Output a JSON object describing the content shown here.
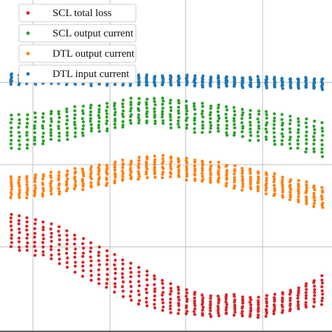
{
  "chart_data": {
    "type": "scatter",
    "x_positions": [
      1,
      2,
      3,
      4,
      5,
      6,
      7,
      8,
      9,
      10,
      11,
      12,
      13,
      14,
      15,
      16,
      17,
      18,
      19,
      20,
      21,
      22,
      23,
      24,
      25,
      26,
      27,
      28,
      29,
      30,
      31,
      32,
      33,
      34,
      35,
      36,
      37,
      38,
      39,
      40
    ],
    "ylim": [
      0,
      4
    ],
    "grid": true,
    "legend_placement": "top-left",
    "series": [
      {
        "name": "SCL total loss",
        "color": "#d62728",
        "low": [
          1.0,
          0.95,
          0.95,
          0.9,
          0.9,
          0.85,
          0.8,
          0.75,
          0.7,
          0.65,
          0.6,
          0.55,
          0.5,
          0.45,
          0.4,
          0.35,
          0.3,
          0.28,
          0.25,
          0.22,
          0.2,
          0.2,
          0.18,
          0.18,
          0.16,
          0.16,
          0.16,
          0.18,
          0.18,
          0.16,
          0.15,
          0.15,
          0.16,
          0.18,
          0.2,
          0.22,
          0.24,
          0.26,
          0.28,
          0.3
        ],
        "high": [
          1.4,
          1.38,
          1.35,
          1.33,
          1.3,
          1.28,
          1.25,
          1.2,
          1.15,
          1.1,
          1.05,
          1.0,
          0.95,
          0.9,
          0.85,
          0.8,
          0.75,
          0.7,
          0.65,
          0.6,
          0.55,
          0.52,
          0.48,
          0.45,
          0.42,
          0.4,
          0.4,
          0.42,
          0.42,
          0.4,
          0.38,
          0.38,
          0.4,
          0.42,
          0.45,
          0.48,
          0.5,
          0.55,
          0.6,
          0.65
        ]
      },
      {
        "name": "SCL output current",
        "color": "#2ca02c",
        "low": [
          2.2,
          2.2,
          2.2,
          2.25,
          2.25,
          2.3,
          2.3,
          2.3,
          2.35,
          2.35,
          2.4,
          2.4,
          2.4,
          2.45,
          2.45,
          2.5,
          2.5,
          2.5,
          2.5,
          2.5,
          2.45,
          2.45,
          2.45,
          2.4,
          2.4,
          2.4,
          2.4,
          2.35,
          2.35,
          2.35,
          2.3,
          2.3,
          2.3,
          2.25,
          2.25,
          2.2,
          2.2,
          2.15,
          2.15,
          2.1
        ],
        "high": [
          2.6,
          2.6,
          2.6,
          2.62,
          2.62,
          2.65,
          2.65,
          2.68,
          2.7,
          2.7,
          2.72,
          2.72,
          2.75,
          2.75,
          2.78,
          2.8,
          2.8,
          2.8,
          2.8,
          2.8,
          2.78,
          2.78,
          2.76,
          2.75,
          2.74,
          2.72,
          2.72,
          2.7,
          2.7,
          2.68,
          2.66,
          2.65,
          2.64,
          2.62,
          2.6,
          2.58,
          2.56,
          2.55,
          2.52,
          2.5
        ]
      },
      {
        "name": "DTL output current",
        "color": "#ff7f0e",
        "low": [
          1.6,
          1.6,
          1.6,
          1.62,
          1.62,
          1.65,
          1.65,
          1.68,
          1.7,
          1.7,
          1.72,
          1.75,
          1.75,
          1.78,
          1.8,
          1.82,
          1.82,
          1.85,
          1.85,
          1.85,
          1.85,
          1.85,
          1.82,
          1.8,
          1.8,
          1.78,
          1.78,
          1.75,
          1.72,
          1.7,
          1.7,
          1.68,
          1.65,
          1.62,
          1.6,
          1.58,
          1.55,
          1.52,
          1.5,
          1.48
        ],
        "high": [
          1.85,
          1.85,
          1.85,
          1.88,
          1.88,
          1.9,
          1.9,
          1.92,
          1.95,
          1.95,
          1.98,
          2.0,
          2.0,
          2.02,
          2.05,
          2.05,
          2.08,
          2.1,
          2.1,
          2.1,
          2.1,
          2.08,
          2.08,
          2.05,
          2.05,
          2.02,
          2.02,
          2.0,
          1.98,
          1.95,
          1.95,
          1.92,
          1.9,
          1.88,
          1.85,
          1.82,
          1.8,
          1.78,
          1.75,
          1.72
        ]
      },
      {
        "name": "DTL input current",
        "color": "#1f77b4",
        "low": [
          2.98,
          2.98,
          2.98,
          2.98,
          2.98,
          2.98,
          2.98,
          2.98,
          2.97,
          2.97,
          2.97,
          2.97,
          2.97,
          2.97,
          2.97,
          2.96,
          2.96,
          2.96,
          2.96,
          2.96,
          2.96,
          2.96,
          2.96,
          2.95,
          2.95,
          2.95,
          2.95,
          2.95,
          2.95,
          2.94,
          2.94,
          2.94,
          2.94,
          2.94,
          2.93,
          2.93,
          2.93,
          2.93,
          2.93,
          2.92
        ],
        "high": [
          3.1,
          3.1,
          3.1,
          3.1,
          3.1,
          3.1,
          3.1,
          3.1,
          3.09,
          3.09,
          3.09,
          3.09,
          3.09,
          3.09,
          3.09,
          3.08,
          3.08,
          3.08,
          3.08,
          3.08,
          3.08,
          3.08,
          3.08,
          3.07,
          3.07,
          3.07,
          3.07,
          3.07,
          3.07,
          3.06,
          3.06,
          3.06,
          3.06,
          3.06,
          3.05,
          3.05,
          3.05,
          3.05,
          3.05,
          3.04
        ]
      }
    ]
  },
  "legend": {
    "items": [
      {
        "label": "SCL total loss",
        "color": "#d62728"
      },
      {
        "label": "SCL output current",
        "color": "#2ca02c"
      },
      {
        "label": "DTL output current",
        "color": "#ff7f0e"
      },
      {
        "label": "DTL input current",
        "color": "#1f77b4"
      }
    ]
  }
}
